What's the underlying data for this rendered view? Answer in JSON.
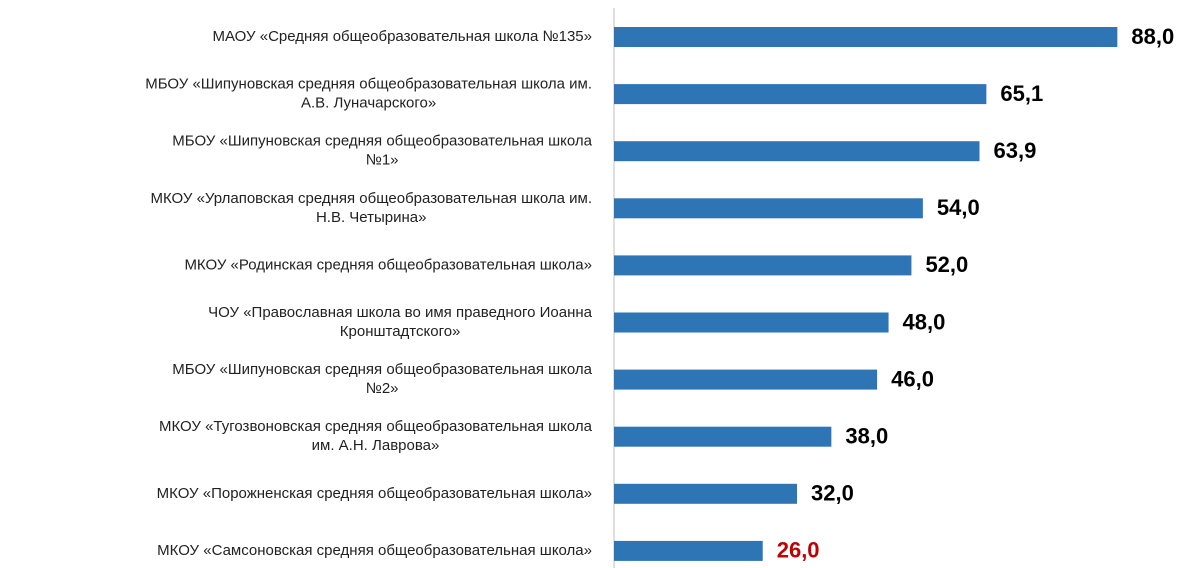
{
  "chart_data": {
    "type": "barh",
    "categories": [
      [
        "МАОУ «Средняя общеобразовательная школа №135»"
      ],
      [
        "МБОУ «Шипуновская средняя общеобразовательная школа им.",
        "А.В. Луначарского»"
      ],
      [
        "МБОУ «Шипуновская средняя общеобразовательная школа",
        "№1»"
      ],
      [
        "МКОУ «Урлаповская средняя общеобразовательная школа им.",
        "Н.В. Четырина»"
      ],
      [
        "МКОУ «Родинская средняя общеобразовательная школа»"
      ],
      [
        "ЧОУ «Православная школа во имя праведного Иоанна",
        "Кронштадтского»"
      ],
      [
        "МБОУ «Шипуновская средняя общеобразовательная школа",
        "№2»"
      ],
      [
        "МКОУ «Тугозвоновская средняя общеобразовательная школа",
        "им. А.Н. Лаврова»"
      ],
      [
        "МКОУ «Порожненская средняя общеобразовательная школа»"
      ],
      [
        "МКОУ «Самсоновская средняя общеобразовательная школа»"
      ]
    ],
    "values": [
      88.0,
      65.1,
      63.9,
      54.0,
      52.0,
      48.0,
      46.0,
      38.0,
      32.0,
      26.0
    ],
    "value_labels": [
      "88,0",
      "65,1",
      "63,9",
      "54,0",
      "52,0",
      "48,0",
      "46,0",
      "38,0",
      "32,0",
      "26,0"
    ],
    "value_label_colors": [
      "#000000",
      "#000000",
      "#000000",
      "#000000",
      "#000000",
      "#000000",
      "#000000",
      "#000000",
      "#000000",
      "#c00000"
    ],
    "color": "#2e75b6",
    "xlim": [
      0,
      100
    ]
  }
}
